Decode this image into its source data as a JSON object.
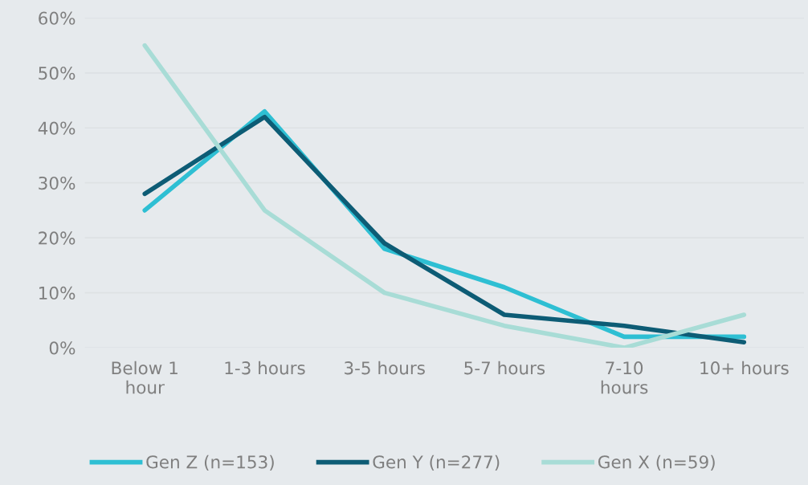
{
  "chart_data": {
    "type": "line",
    "categories": [
      "Below 1 hour",
      "1-3 hours",
      "3-5 hours",
      "5-7 hours",
      "7-10 hours",
      "10+ hours"
    ],
    "series": [
      {
        "name": "Gen Z (n=153)",
        "color": "#2ebfd3",
        "values": [
          25,
          43,
          18,
          11,
          2,
          2
        ]
      },
      {
        "name": "Gen Y (n=277)",
        "color": "#0d5c75",
        "values": [
          28,
          42,
          19,
          6,
          4,
          1
        ]
      },
      {
        "name": "Gen X (n=59)",
        "color": "#a8dcd6",
        "values": [
          55,
          25,
          10,
          4,
          0,
          6
        ]
      }
    ],
    "ylim": [
      0,
      60
    ],
    "yticks": [
      {
        "value": 0,
        "label": "0%"
      },
      {
        "value": 10,
        "label": "10%"
      },
      {
        "value": 20,
        "label": "20%"
      },
      {
        "value": 30,
        "label": "30%"
      },
      {
        "value": 40,
        "label": "40%"
      },
      {
        "value": 50,
        "label": "50%"
      },
      {
        "value": 60,
        "label": "60%"
      }
    ],
    "grid": "y",
    "legend": "bottom",
    "marker": "none",
    "line_style": "solid"
  }
}
